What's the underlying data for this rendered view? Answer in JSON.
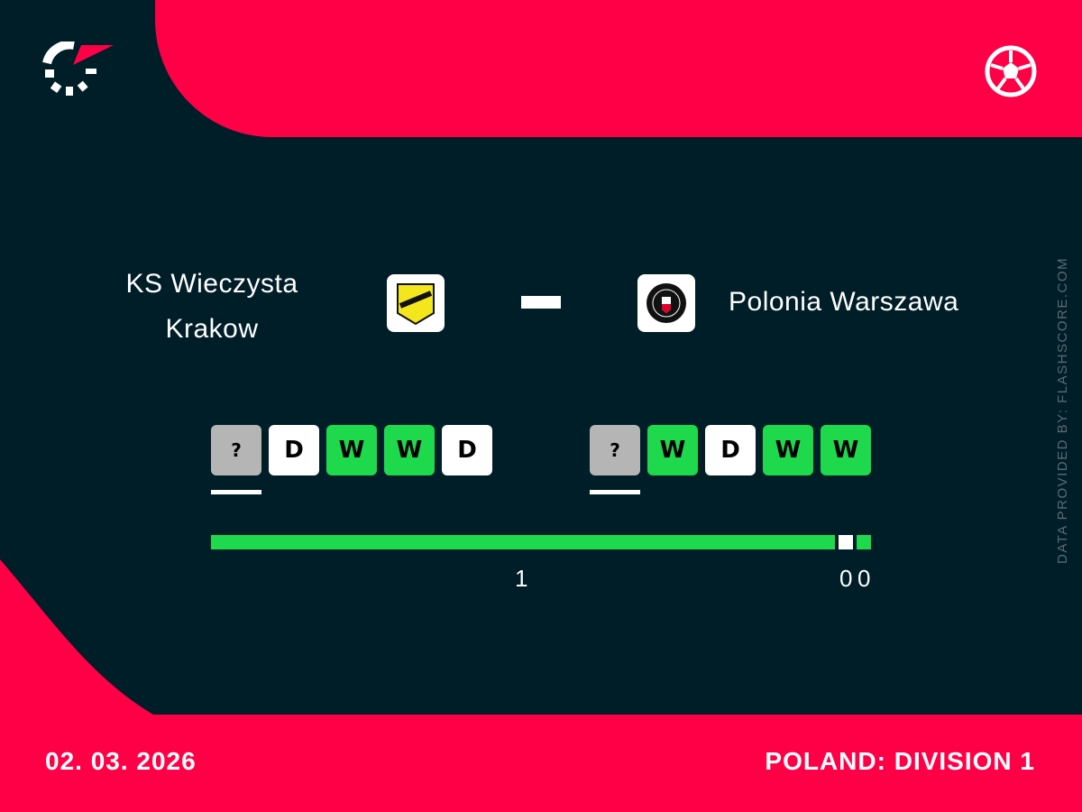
{
  "brand": {
    "accent": "#ff0046",
    "background": "#001e28",
    "win_color": "#1ed94b",
    "draw_color": "#ffffff",
    "unknown_color": "#b5b5b5"
  },
  "match": {
    "home": {
      "name_line1": "KS Wieczysta",
      "name_line2": "Krakow",
      "form": [
        "?",
        "D",
        "W",
        "W",
        "D"
      ]
    },
    "away": {
      "name": "Polonia Warszawa",
      "form": [
        "?",
        "W",
        "D",
        "W",
        "W"
      ]
    },
    "separator": "–"
  },
  "h2h": {
    "home_wins": "1",
    "draws": "0",
    "away_wins": "0"
  },
  "footer": {
    "date": "02. 03. 2026",
    "league": "POLAND: DIVISION 1"
  },
  "credit": "DATA PROVIDED BY: FLASHSCORE.COM",
  "icons": {
    "logo": "flashscore-logo",
    "sport": "soccer-ball-icon"
  }
}
